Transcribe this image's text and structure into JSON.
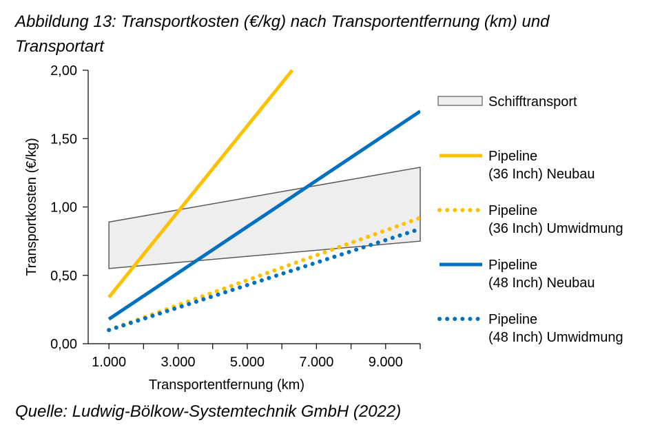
{
  "figure": {
    "title": "Abbildung 13: Transportkosten (€/kg) nach Transportentfernung (km) und Transportart",
    "source": "Quelle: Ludwig-Bölkow-Systemtechnik GmbH (2022)"
  },
  "chart_data": {
    "type": "line",
    "xlabel": "Transportentfernung (km)",
    "ylabel": "Transportkosten (€/kg)",
    "xlim": [
      400,
      10000
    ],
    "ylim": [
      0,
      2
    ],
    "xticks": [
      1000,
      3000,
      5000,
      7000,
      9000
    ],
    "xtick_labels": [
      "1.000",
      "3.000",
      "5.000",
      "7.000",
      "9.000"
    ],
    "yticks": [
      0,
      0.5,
      1,
      1.5,
      2
    ],
    "ytick_labels": [
      "0,00",
      "0,50",
      "1,00",
      "1,50",
      "2,00"
    ],
    "band": {
      "name": "Schifftransport",
      "x": [
        1000,
        10000
      ],
      "lower": [
        0.55,
        0.75
      ],
      "upper": [
        0.89,
        1.29
      ],
      "fill": "#eeeeee",
      "stroke": "#595959"
    },
    "series": [
      {
        "name": "Pipeline (36 Inch) Neubau",
        "legend_lines": [
          "Pipeline",
          "(36 Inch) Neubau"
        ],
        "x": [
          1000,
          6300
        ],
        "values": [
          0.34,
          2.0
        ],
        "color": "#ffc000",
        "style": "solid"
      },
      {
        "name": "Pipeline (36 Inch) Umwidmung",
        "legend_lines": [
          "Pipeline",
          "(36 Inch) Umwidmung"
        ],
        "x": [
          1000,
          10000
        ],
        "values": [
          0.1,
          0.92
        ],
        "color": "#ffc000",
        "style": "dotted"
      },
      {
        "name": "Pipeline (48 Inch) Neubau",
        "legend_lines": [
          "Pipeline",
          "(48 Inch) Neubau"
        ],
        "x": [
          1000,
          10000
        ],
        "values": [
          0.18,
          1.7
        ],
        "color": "#0070c0",
        "style": "solid"
      },
      {
        "name": "Pipeline (48 Inch) Umwidmung",
        "legend_lines": [
          "Pipeline",
          "(48 Inch) Umwidmung"
        ],
        "x": [
          1000,
          10000
        ],
        "values": [
          0.1,
          0.84
        ],
        "color": "#0070c0",
        "style": "dotted"
      }
    ],
    "legend_position": "right",
    "grid": false
  }
}
